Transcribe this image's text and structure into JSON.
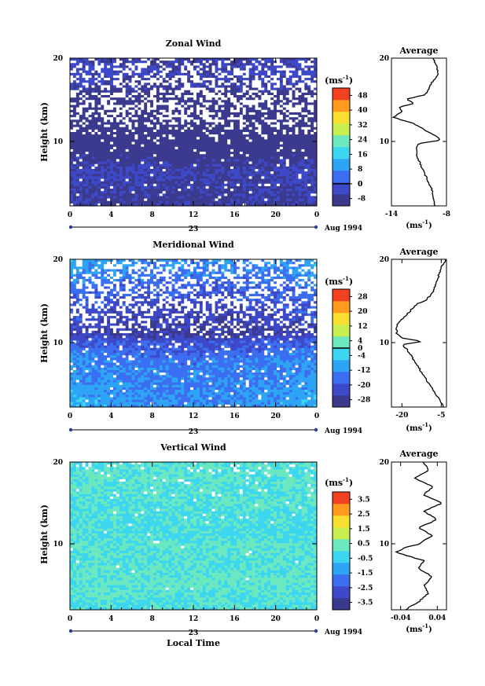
{
  "chart_data": {
    "type": "heatmap",
    "panels": [
      {
        "title": "Zonal Wind",
        "ylabel": "Height (km)",
        "ylim": [
          2,
          20
        ],
        "yticks": [
          "10",
          "20"
        ],
        "xlim": [
          0,
          24
        ],
        "xticks": [
          "0",
          "4",
          "8",
          "12",
          "16",
          "20",
          "0"
        ],
        "day_label": "23",
        "date_label": "Aug 1994",
        "colorbar_unit": "(ms",
        "unit_exp": "-1",
        "colorbar_ticks": [
          "48",
          "40",
          "32",
          "24",
          "16",
          "8",
          "0",
          "-8"
        ],
        "zero_label": "0",
        "field_profile": [
          [
            2,
            -6
          ],
          [
            6,
            -4
          ],
          [
            9,
            -8
          ],
          [
            10,
            -10
          ],
          [
            12,
            -12
          ],
          [
            14,
            -11
          ],
          [
            16,
            -6
          ],
          [
            18,
            -3
          ],
          [
            20,
            -5
          ]
        ],
        "field_time_drift": -1.5,
        "field_noise": 2.5,
        "missing_profile": [
          [
            2,
            0.02
          ],
          [
            10,
            0.06
          ],
          [
            12,
            0.32
          ],
          [
            14,
            0.5
          ],
          [
            16,
            0.45
          ],
          [
            18,
            0.35
          ],
          [
            20,
            0.3
          ]
        ],
        "average": {
          "title": "Average",
          "unit": "(ms",
          "unit_exp": "-1",
          "xlim": [
            -14,
            -8
          ],
          "xticks": [
            "-14",
            "-8"
          ],
          "yticks": [
            "10",
            "20"
          ],
          "profile": [
            [
              2,
              -9.2
            ],
            [
              3,
              -9.5
            ],
            [
              4,
              -9.6
            ],
            [
              5,
              -10.0
            ],
            [
              6,
              -10.4
            ],
            [
              7,
              -10.8
            ],
            [
              8,
              -11.2
            ],
            [
              9,
              -11.3
            ],
            [
              9.6,
              -11.0
            ],
            [
              10,
              -8.6
            ],
            [
              10.4,
              -9.0
            ],
            [
              11,
              -10.0
            ],
            [
              12,
              -11.5
            ],
            [
              12.8,
              -13.8
            ],
            [
              13.5,
              -12.8
            ],
            [
              14,
              -13.2
            ],
            [
              14.5,
              -11.5
            ],
            [
              15,
              -12.4
            ],
            [
              15.5,
              -10.5
            ],
            [
              16,
              -10.0
            ],
            [
              17,
              -9.6
            ],
            [
              18,
              -8.9
            ],
            [
              19,
              -9.1
            ],
            [
              20,
              -9.4
            ]
          ]
        }
      },
      {
        "title": "Meridional Wind",
        "ylabel": "Height (km)",
        "ylim": [
          2,
          20
        ],
        "yticks": [
          "10",
          "20"
        ],
        "xlim": [
          0,
          24
        ],
        "xticks": [
          "0",
          "4",
          "8",
          "12",
          "16",
          "20",
          "0"
        ],
        "day_label": "23",
        "date_label": "Aug 1994",
        "colorbar_unit": "(ms",
        "unit_exp": "-1",
        "colorbar_ticks": [
          "28",
          "20",
          "12",
          "4",
          "-4",
          "-12",
          "-20",
          "-28"
        ],
        "zero_label": "0",
        "field_profile": [
          [
            2,
            -8
          ],
          [
            5,
            -10
          ],
          [
            8,
            -12
          ],
          [
            10,
            -18
          ],
          [
            11,
            -24
          ],
          [
            12,
            -22
          ],
          [
            14,
            -20
          ],
          [
            16,
            -16
          ],
          [
            18,
            -12
          ],
          [
            20,
            -8
          ]
        ],
        "field_time_drift": -4,
        "field_noise": 4,
        "missing_profile": [
          [
            2,
            0.02
          ],
          [
            10,
            0.08
          ],
          [
            12,
            0.3
          ],
          [
            14,
            0.42
          ],
          [
            16,
            0.4
          ],
          [
            18,
            0.35
          ],
          [
            20,
            0.35
          ]
        ],
        "average": {
          "title": "Average",
          "unit": "(ms",
          "unit_exp": "-1",
          "xlim": [
            -24,
            -3
          ],
          "xticks": [
            "-20",
            "-5"
          ],
          "yticks": [
            "10",
            "20"
          ],
          "profile": [
            [
              2,
              -4
            ],
            [
              3,
              -6
            ],
            [
              4,
              -8
            ],
            [
              5,
              -10
            ],
            [
              6,
              -12
            ],
            [
              7,
              -14
            ],
            [
              8,
              -16
            ],
            [
              9,
              -18
            ],
            [
              9.6,
              -20
            ],
            [
              10,
              -12
            ],
            [
              10.4,
              -20
            ],
            [
              11,
              -22
            ],
            [
              12,
              -22
            ],
            [
              13,
              -19
            ],
            [
              14,
              -16
            ],
            [
              14.6,
              -14
            ],
            [
              15,
              -11
            ],
            [
              16,
              -8
            ],
            [
              17,
              -7
            ],
            [
              18,
              -6
            ],
            [
              19,
              -5
            ],
            [
              20,
              -3
            ]
          ]
        }
      },
      {
        "title": "Vertical Wind",
        "ylabel": "Height (km)",
        "ylim": [
          2,
          20
        ],
        "yticks": [
          "10",
          "20"
        ],
        "xlim": [
          0,
          24
        ],
        "xticks": [
          "0",
          "4",
          "8",
          "12",
          "16",
          "20",
          "0"
        ],
        "day_label": "23",
        "date_label": "Aug 1994",
        "xlabel": "Local Time",
        "colorbar_unit": "(ms",
        "unit_exp": "-1",
        "colorbar_ticks": [
          "3.5",
          "2.5",
          "1.5",
          "0.5",
          "-0.5",
          "-1.5",
          "-2.5",
          "-3.5"
        ],
        "zero_label": "",
        "field_profile": [
          [
            2,
            -0.2
          ],
          [
            5,
            0.2
          ],
          [
            8,
            0.0
          ],
          [
            10,
            0.1
          ],
          [
            12,
            -0.2
          ],
          [
            15,
            0.0
          ],
          [
            18,
            0.1
          ],
          [
            20,
            0.0
          ]
        ],
        "field_time_drift": 0,
        "field_noise": 0.5,
        "missing_profile": [
          [
            2,
            0.0
          ],
          [
            12,
            0.01
          ],
          [
            16,
            0.02
          ],
          [
            18,
            0.06
          ],
          [
            20,
            0.12
          ]
        ],
        "average": {
          "title": "Average",
          "unit": "(ms",
          "unit_exp": "-1",
          "xlim": [
            -0.06,
            0.06
          ],
          "xticks": [
            "-0.04",
            "0.04"
          ],
          "yticks": [
            "10",
            "20"
          ],
          "profile": [
            [
              2,
              -0.03
            ],
            [
              3,
              0.0
            ],
            [
              4,
              0.02
            ],
            [
              5,
              0.01
            ],
            [
              6,
              0.03
            ],
            [
              7,
              0.0
            ],
            [
              8,
              0.01
            ],
            [
              9,
              -0.05
            ],
            [
              9.6,
              -0.03
            ],
            [
              10,
              0.0
            ],
            [
              10.4,
              0.01
            ],
            [
              11,
              0.03
            ],
            [
              12,
              0.0
            ],
            [
              13,
              0.04
            ],
            [
              14,
              0.01
            ],
            [
              15,
              0.05
            ],
            [
              16,
              0.01
            ],
            [
              17,
              0.03
            ],
            [
              18,
              -0.01
            ],
            [
              19,
              0.02
            ],
            [
              20,
              0.01
            ]
          ]
        }
      }
    ]
  },
  "colors": {
    "scale": [
      "#3b3a8e",
      "#3d49c8",
      "#3b6ef0",
      "#2ea4f5",
      "#3cd6f0",
      "#6ce8c0",
      "#c8ee50",
      "#f8e030",
      "#ff9a1c",
      "#f24020"
    ],
    "missing": "#ffffff",
    "axis": "#000000",
    "marker": "#2a3a9a"
  }
}
